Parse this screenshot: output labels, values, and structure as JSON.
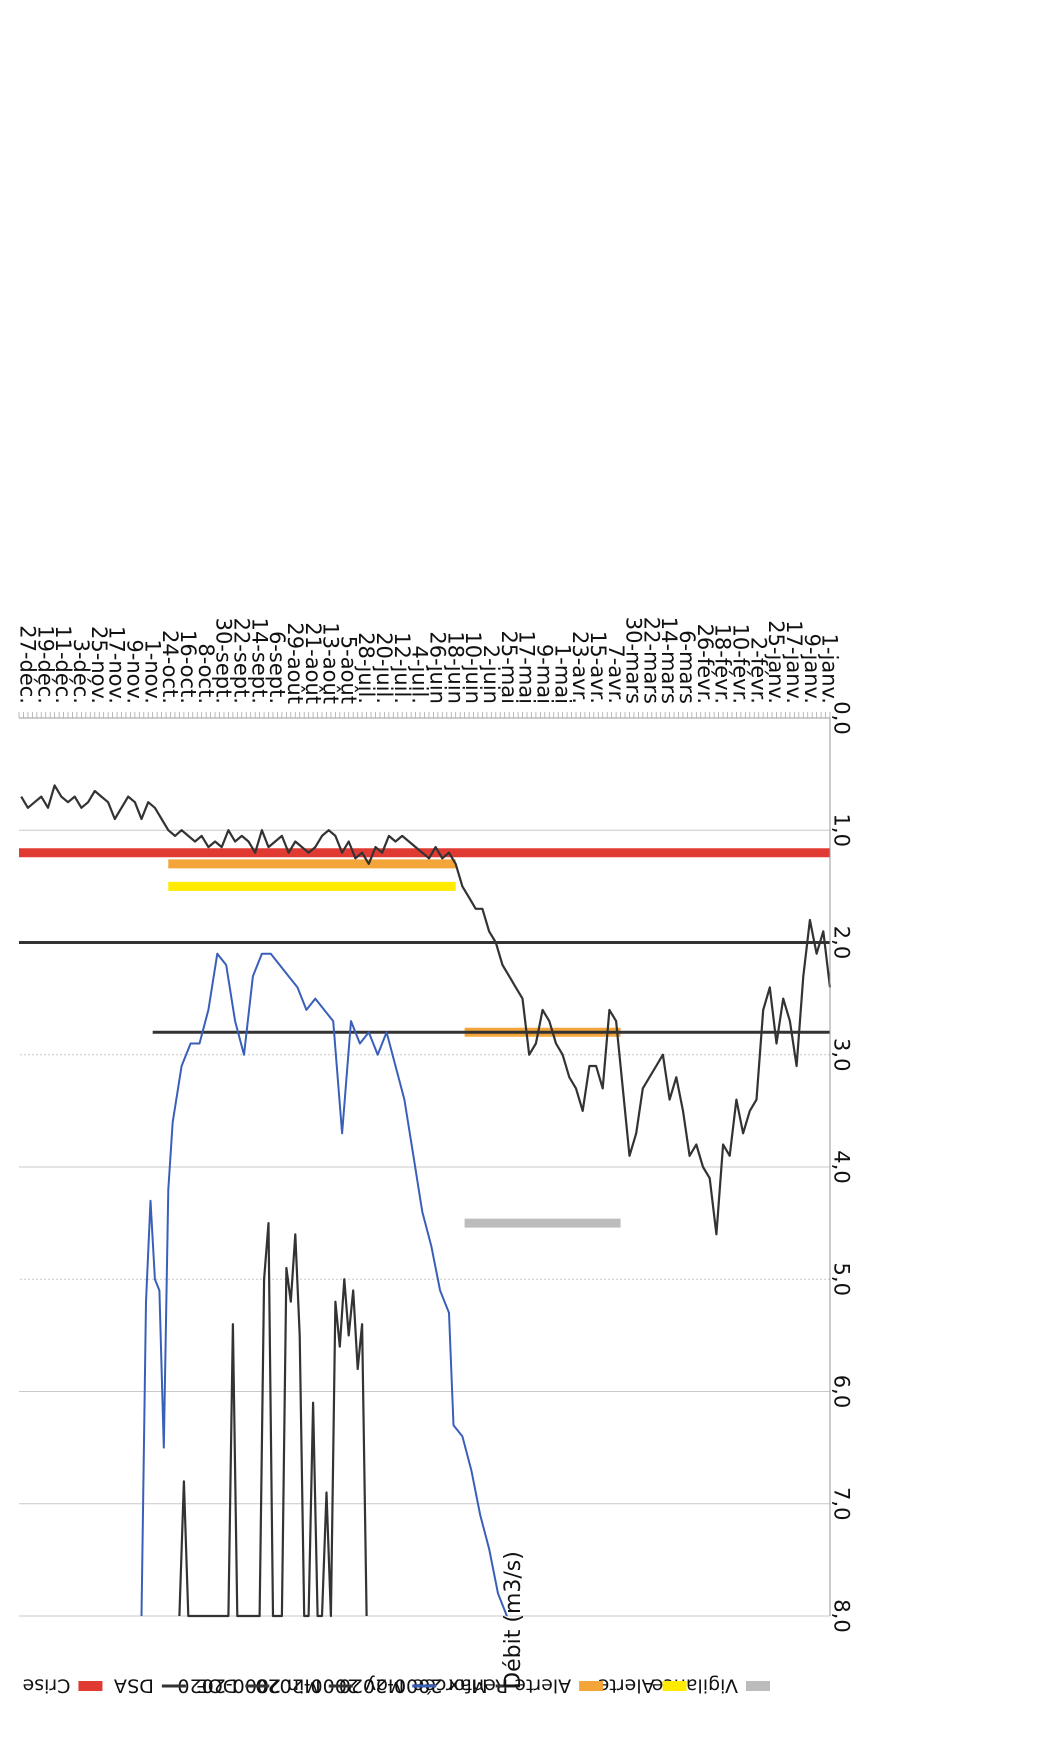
{
  "chart_data": {
    "type": "line",
    "ylabel": "Débit (m3/s)",
    "ylim": [
      0,
      8
    ],
    "yticks": [
      "0,0",
      "1,0",
      "2,0",
      "3,0",
      "4,0",
      "5,0",
      "6,0",
      "7,0",
      "8,0"
    ],
    "ytick_values": [
      0,
      1,
      2,
      3,
      4,
      5,
      6,
      7,
      8
    ],
    "xlim": [
      1,
      365
    ],
    "xticks": [
      "1-janv.",
      "9-janv.",
      "17-janv.",
      "25-janv.",
      "2-févr.",
      "10-févr.",
      "18-févr.",
      "26-févr.",
      "6-mars",
      "14-mars",
      "22-mars",
      "30-mars",
      "7-avr.",
      "15-avr.",
      "23-avr.",
      "1-mai",
      "9-mai",
      "17-mai",
      "25-mai",
      "2-juin",
      "10-juin",
      "18-juin",
      "26-juin",
      "4-juil.",
      "12-juil.",
      "20-juil.",
      "28-juil.",
      "5-août",
      "13-août",
      "21-août",
      "29-août",
      "6-sept.",
      "14-sept.",
      "22-sept.",
      "30-sept.",
      "8-oct.",
      "16-oct.",
      "24-oct.",
      "1-nov.",
      "9-nov.",
      "17-nov.",
      "25-nov.",
      "3-déc.",
      "11-déc.",
      "19-déc.",
      "27-déc."
    ],
    "xtick_days": [
      1,
      9,
      17,
      25,
      33,
      41,
      49,
      57,
      65,
      73,
      81,
      89,
      97,
      105,
      113,
      121,
      129,
      137,
      145,
      153,
      161,
      169,
      177,
      185,
      193,
      201,
      209,
      217,
      225,
      233,
      241,
      249,
      257,
      265,
      273,
      281,
      289,
      297,
      305,
      313,
      321,
      329,
      337,
      345,
      353,
      361
    ],
    "grid": true,
    "legend": {
      "placement": "top"
    },
    "series": [
      {
        "name": "Max 2000-2020",
        "color": "#333333",
        "x": [
          209,
          211,
          213,
          215,
          217,
          219,
          221,
          223,
          225,
          227,
          229,
          231,
          233,
          235,
          237,
          239,
          241,
          243,
          245,
          247,
          249,
          251,
          253,
          255,
          257,
          259,
          261,
          263,
          265,
          267,
          269,
          271,
          273,
          275,
          277,
          279,
          281,
          283,
          285,
          287,
          289,
          291,
          293
        ],
        "y": [
          8.0,
          5.4,
          5.8,
          5.1,
          5.5,
          5.0,
          5.6,
          5.2,
          8.0,
          6.9,
          8.0,
          8.0,
          6.1,
          8.0,
          8.0,
          5.5,
          4.6,
          5.2,
          4.9,
          8.0,
          8.0,
          8.0,
          4.5,
          5.0,
          8.0,
          8.0,
          8.0,
          8.0,
          8.0,
          8.0,
          5.4,
          8.0,
          8.0,
          8.0,
          8.0,
          8.0,
          8.0,
          8.0,
          8.0,
          8.0,
          8.0,
          6.8,
          8.0
        ]
      },
      {
        "name": "Moy 2000-2020",
        "color": "#3a5fb8",
        "x": [
          146,
          150,
          154,
          158,
          162,
          166,
          170,
          172,
          176,
          180,
          184,
          188,
          192,
          196,
          200,
          204,
          208,
          212,
          216,
          220,
          224,
          228,
          232,
          236,
          240,
          244,
          248,
          252,
          256,
          260,
          264,
          268,
          272,
          276,
          280,
          284,
          288,
          292,
          296,
          298,
          300,
          302,
          304,
          306,
          308,
          310
        ],
        "y": [
          8.0,
          7.8,
          7.4,
          7.1,
          6.7,
          6.4,
          6.3,
          5.3,
          5.1,
          4.7,
          4.4,
          3.9,
          3.4,
          3.1,
          2.8,
          3.0,
          2.8,
          2.9,
          2.7,
          3.7,
          2.7,
          2.6,
          2.5,
          2.6,
          2.4,
          2.3,
          2.2,
          2.1,
          2.1,
          2.3,
          3.0,
          2.7,
          2.2,
          2.1,
          2.6,
          2.9,
          2.9,
          3.1,
          3.6,
          4.2,
          6.5,
          5.1,
          5.0,
          4.3,
          5.2,
          8.0
        ]
      },
      {
        "name": "Débit",
        "color": "#333333",
        "x": [
          1,
          4,
          7,
          10,
          13,
          16,
          19,
          22,
          25,
          28,
          31,
          34,
          37,
          40,
          43,
          46,
          49,
          52,
          55,
          58,
          61,
          64,
          67,
          70,
          73,
          76,
          79,
          82,
          85,
          88,
          91,
          94,
          97,
          100,
          103,
          106,
          109,
          112,
          115,
          118,
          121,
          124,
          127,
          130,
          133,
          136,
          139,
          142,
          145,
          148,
          151,
          154,
          157,
          160,
          163,
          166,
          169,
          172,
          175,
          178,
          181,
          184,
          187,
          190,
          193,
          196,
          199,
          202,
          205,
          208,
          211,
          214,
          217,
          220,
          223,
          226,
          229,
          232,
          235,
          238,
          241,
          244,
          247,
          250,
          253,
          256,
          259,
          262,
          265,
          268,
          271,
          274,
          277,
          280,
          283,
          286,
          289,
          292,
          295,
          298,
          301,
          304,
          307,
          310,
          313,
          316,
          319,
          322,
          325,
          328,
          331,
          334,
          337,
          340,
          343,
          346,
          349,
          352,
          355,
          358,
          361,
          364
        ],
        "y": [
          2.4,
          1.9,
          2.1,
          1.8,
          2.3,
          3.1,
          2.7,
          2.5,
          2.9,
          2.4,
          2.6,
          3.4,
          3.5,
          3.7,
          3.4,
          3.9,
          3.8,
          4.6,
          4.1,
          4.0,
          3.8,
          3.9,
          3.5,
          3.2,
          3.4,
          3.0,
          3.1,
          3.2,
          3.3,
          3.7,
          3.9,
          3.3,
          2.7,
          2.6,
          3.3,
          3.1,
          3.1,
          3.5,
          3.3,
          3.2,
          3.0,
          2.9,
          2.7,
          2.6,
          2.9,
          3.0,
          2.5,
          2.4,
          2.3,
          2.2,
          2.0,
          1.9,
          1.7,
          1.7,
          1.6,
          1.5,
          1.3,
          1.2,
          1.25,
          1.15,
          1.25,
          1.2,
          1.15,
          1.1,
          1.05,
          1.1,
          1.05,
          1.2,
          1.15,
          1.3,
          1.2,
          1.25,
          1.1,
          1.2,
          1.05,
          1.0,
          1.05,
          1.15,
          1.2,
          1.15,
          1.1,
          1.2,
          1.05,
          1.1,
          1.15,
          1.0,
          1.2,
          1.1,
          1.05,
          1.1,
          1.0,
          1.15,
          1.1,
          1.15,
          1.05,
          1.1,
          1.05,
          1.0,
          1.05,
          1.0,
          0.9,
          0.8,
          0.75,
          0.9,
          0.75,
          0.7,
          0.8,
          0.9,
          0.75,
          0.7,
          0.65,
          0.75,
          0.8,
          0.7,
          0.75,
          0.7,
          0.6,
          0.8,
          0.7,
          0.75,
          0.8,
          0.7
        ]
      }
    ],
    "flat_lines": [
      {
        "label_ref": "Max 2000-2020",
        "color": "#333333",
        "y": 2.8,
        "x_from": 1,
        "x_to": 305
      },
      {
        "label_ref": "Min 2000-2020",
        "color": "#333333",
        "y": 2.0,
        "x_from": 1,
        "x_to": 365
      }
    ],
    "thresholds": [
      {
        "name": "Vigilance",
        "color": "#bcbcbc",
        "y": 4.5,
        "x_from": 95,
        "x_to": 165
      },
      {
        "name": "Alerte Renforcée",
        "color": "#f4a53a",
        "y": 2.8,
        "x_from": 95,
        "x_to": 165
      },
      {
        "name": "Alerte",
        "color": "#ffea00",
        "y": 1.5,
        "x_from": 169,
        "x_to": 298
      },
      {
        "name": "Alerte Renforcée",
        "color": "#f4a53a",
        "y": 1.3,
        "x_from": 169,
        "x_to": 298
      },
      {
        "name": "Crise",
        "color": "#e03a33",
        "y": 1.2,
        "x_from": 1,
        "x_to": 365
      }
    ],
    "legend_items": [
      {
        "name": "Vigilance",
        "color": "#bcbcbc",
        "kind": "band"
      },
      {
        "name": "Alerte",
        "color": "#ffea00",
        "kind": "band"
      },
      {
        "name": "Alerte Renforcée",
        "color": "#f4a53a",
        "kind": "band"
      },
      {
        "name": "Max 2000-2020",
        "color": "#333333",
        "kind": "line"
      },
      {
        "name": "Moy 2000-2020",
        "color": "#3a5fb8",
        "kind": "line"
      },
      {
        "name": "Min 2000-2020",
        "color": "#333333",
        "kind": "line"
      },
      {
        "name": "DOE",
        "color": "#333333",
        "kind": "line"
      },
      {
        "name": "DSA",
        "color": "#333333",
        "kind": "line"
      },
      {
        "name": "Crise",
        "color": "#e03a33",
        "kind": "band"
      }
    ]
  }
}
